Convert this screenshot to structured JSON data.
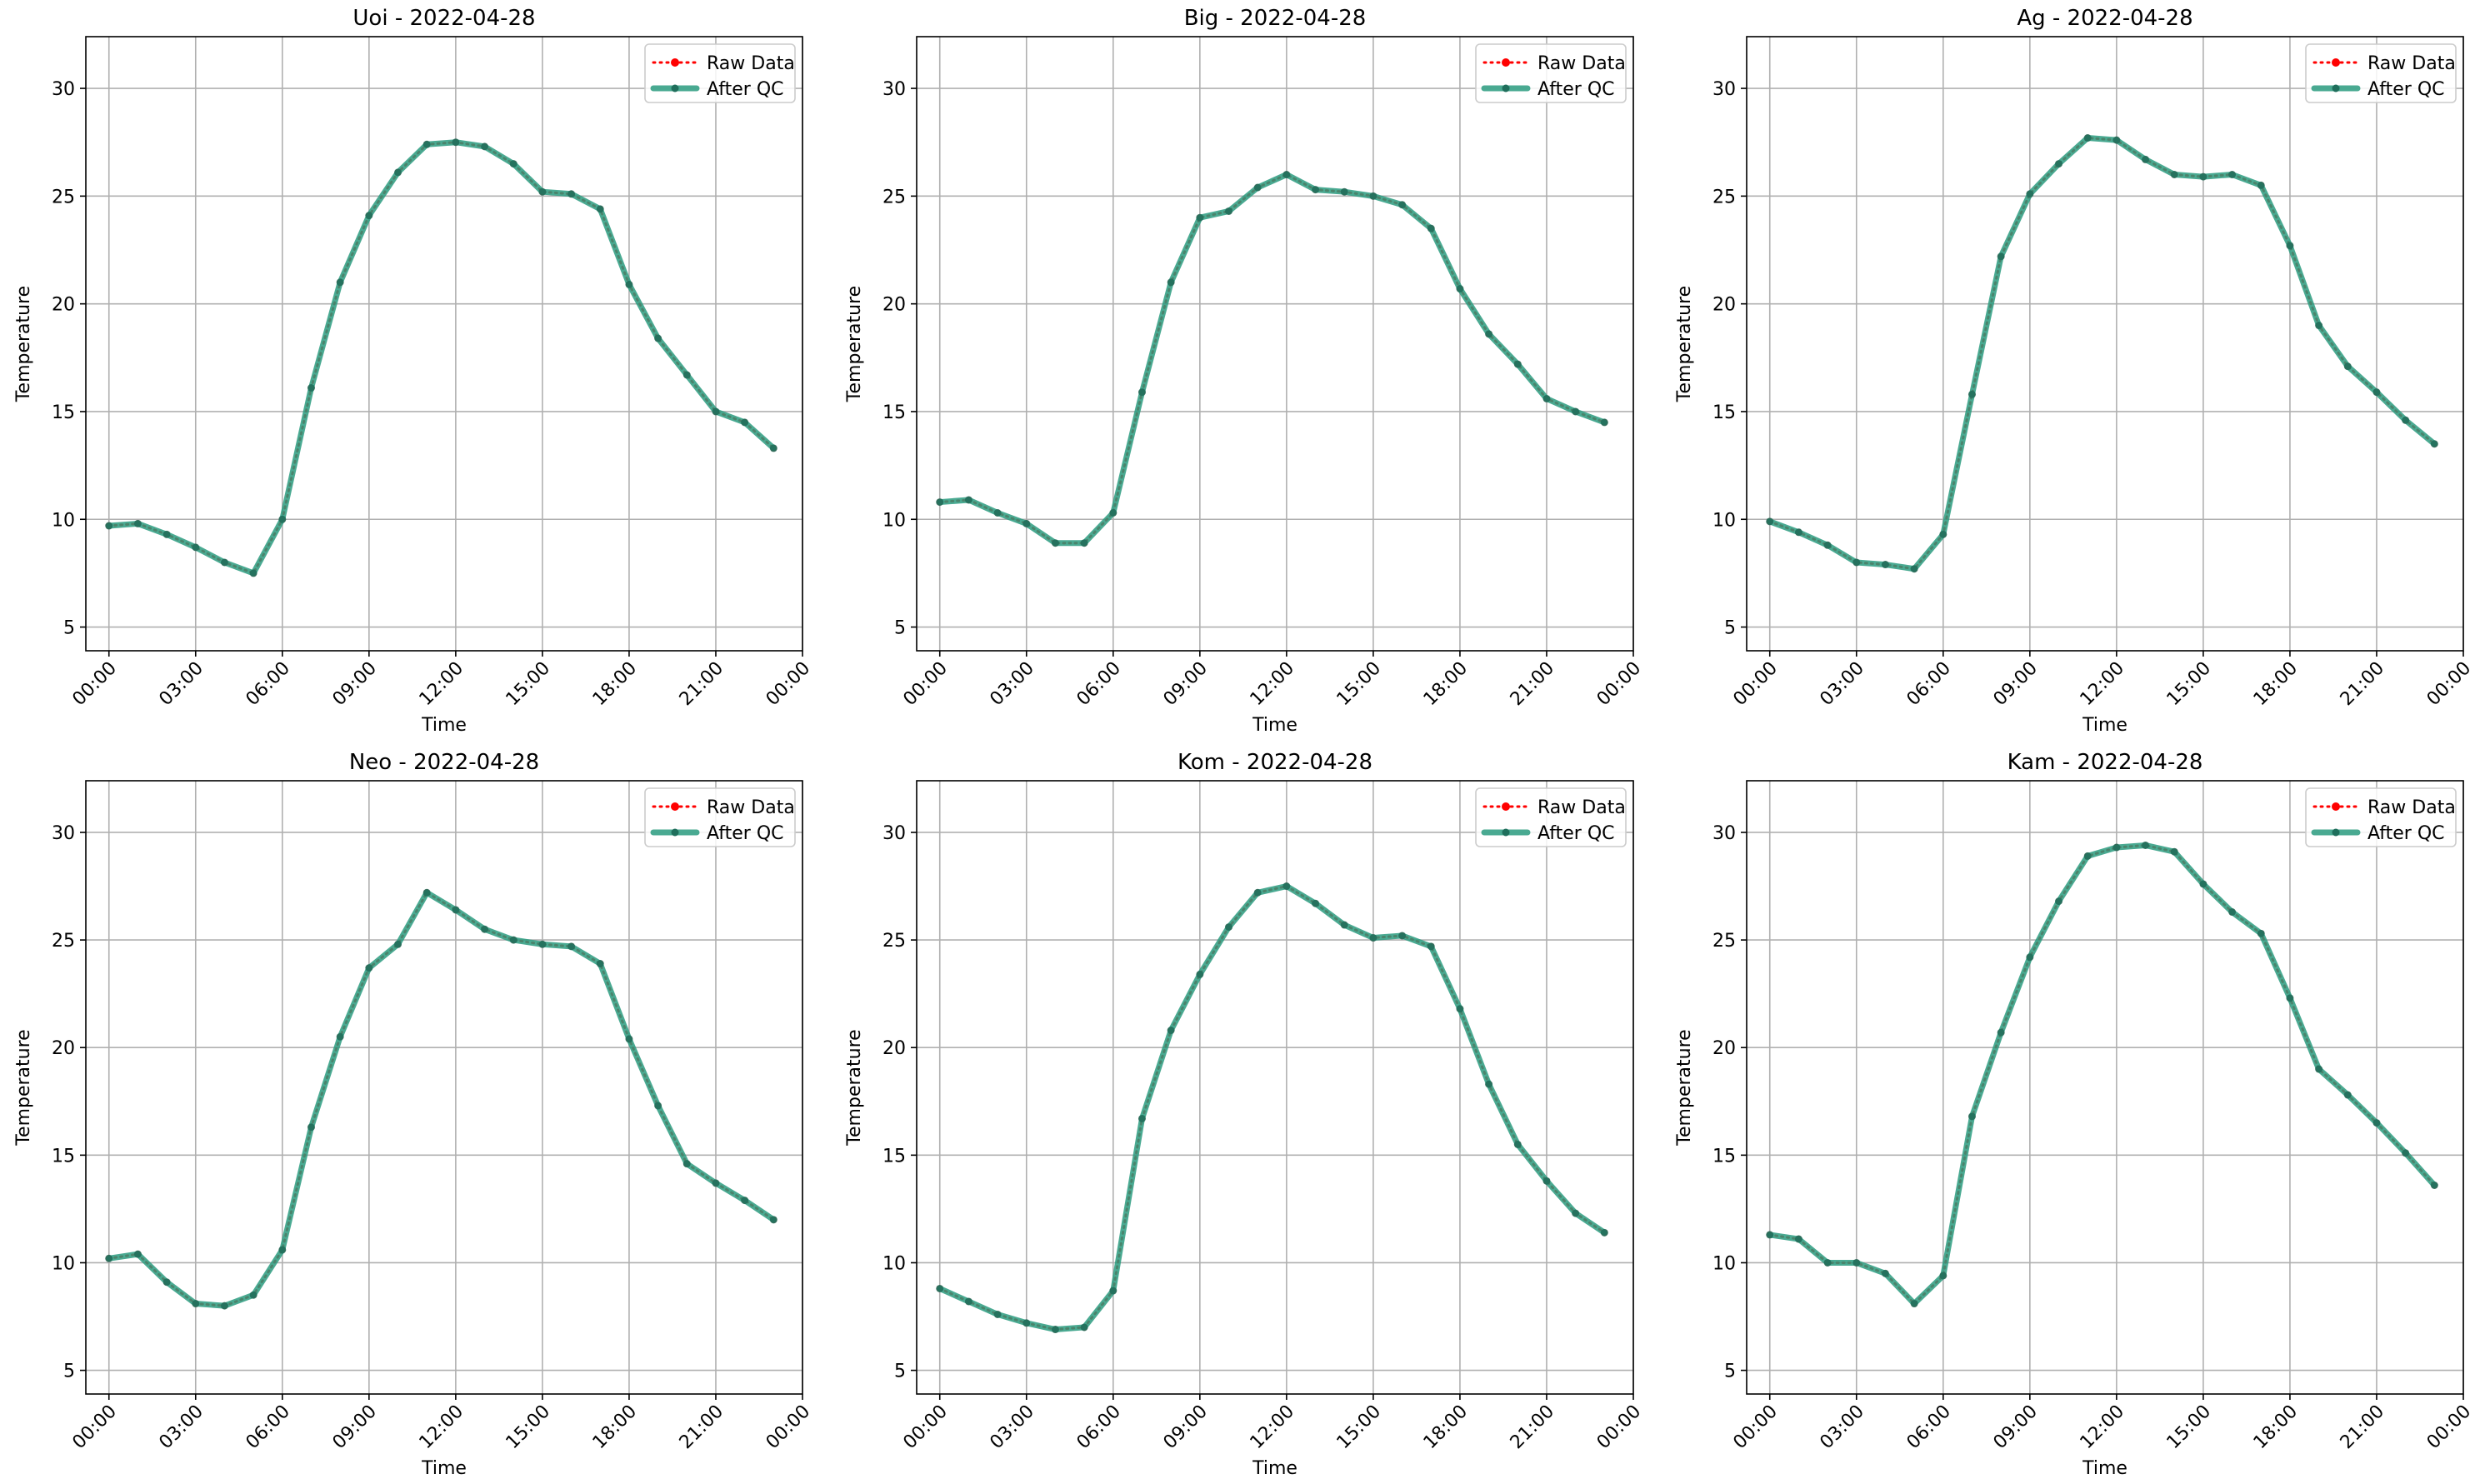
{
  "figure": {
    "legend_position": "upper right",
    "grid": true
  },
  "chart_data": [
    {
      "type": "line",
      "title": "Uoi - 2022-04-28",
      "xlabel": "Time",
      "ylabel": "Temperature",
      "xlim": [
        -0.8,
        24.0
      ],
      "ylim": [
        3.9,
        32.4
      ],
      "x_ticks": [
        0,
        3,
        6,
        9,
        12,
        15,
        18,
        21,
        24
      ],
      "x_tick_labels": [
        "00:00",
        "03:00",
        "06:00",
        "09:00",
        "12:00",
        "15:00",
        "18:00",
        "21:00",
        "00:00"
      ],
      "y_ticks": [
        5,
        10,
        15,
        20,
        25,
        30
      ],
      "y_tick_labels": [
        "5",
        "10",
        "15",
        "20",
        "25",
        "30"
      ],
      "x": [
        0,
        1,
        2,
        3,
        4,
        5,
        6,
        7,
        8,
        9,
        10,
        11,
        12,
        13,
        14,
        15,
        16,
        17,
        18,
        19,
        20,
        21,
        22,
        23
      ],
      "series": [
        {
          "name": "Raw Data",
          "color": "#ff0000",
          "style": "dotted",
          "marker": "circle",
          "values": [
            9.7,
            9.8,
            9.3,
            8.7,
            8.0,
            7.5,
            10.0,
            16.1,
            21.0,
            24.1,
            26.1,
            27.4,
            27.5,
            27.3,
            26.5,
            25.2,
            25.1,
            24.4,
            20.9,
            18.4,
            16.7,
            15.0,
            14.5,
            13.3
          ]
        },
        {
          "name": "After QC",
          "color": "#2a9b7f",
          "style": "solid",
          "marker": "circle",
          "values": [
            9.7,
            9.8,
            9.3,
            8.7,
            8.0,
            7.5,
            10.0,
            16.1,
            21.0,
            24.1,
            26.1,
            27.4,
            27.5,
            27.3,
            26.5,
            25.2,
            25.1,
            24.4,
            20.9,
            18.4,
            16.7,
            15.0,
            14.5,
            13.3
          ]
        }
      ]
    },
    {
      "type": "line",
      "title": "Big - 2022-04-28",
      "xlabel": "Time",
      "ylabel": "Temperature",
      "xlim": [
        -0.8,
        24.0
      ],
      "ylim": [
        3.9,
        32.4
      ],
      "x_ticks": [
        0,
        3,
        6,
        9,
        12,
        15,
        18,
        21,
        24
      ],
      "x_tick_labels": [
        "00:00",
        "03:00",
        "06:00",
        "09:00",
        "12:00",
        "15:00",
        "18:00",
        "21:00",
        "00:00"
      ],
      "y_ticks": [
        5,
        10,
        15,
        20,
        25,
        30
      ],
      "y_tick_labels": [
        "5",
        "10",
        "15",
        "20",
        "25",
        "30"
      ],
      "x": [
        0,
        1,
        2,
        3,
        4,
        5,
        6,
        7,
        8,
        9,
        10,
        11,
        12,
        13,
        14,
        15,
        16,
        17,
        18,
        19,
        20,
        21,
        22,
        23
      ],
      "series": [
        {
          "name": "Raw Data",
          "color": "#ff0000",
          "style": "dotted",
          "marker": "circle",
          "values": [
            10.8,
            10.9,
            10.3,
            9.8,
            8.9,
            8.9,
            10.3,
            15.9,
            21.0,
            24.0,
            24.3,
            25.4,
            26.0,
            25.3,
            25.2,
            25.0,
            24.6,
            23.5,
            20.7,
            18.6,
            17.2,
            15.6,
            15.0,
            14.5
          ]
        },
        {
          "name": "After QC",
          "color": "#2a9b7f",
          "style": "solid",
          "marker": "circle",
          "values": [
            10.8,
            10.9,
            10.3,
            9.8,
            8.9,
            8.9,
            10.3,
            15.9,
            21.0,
            24.0,
            24.3,
            25.4,
            26.0,
            25.3,
            25.2,
            25.0,
            24.6,
            23.5,
            20.7,
            18.6,
            17.2,
            15.6,
            15.0,
            14.5
          ]
        }
      ]
    },
    {
      "type": "line",
      "title": "Ag - 2022-04-28",
      "xlabel": "Time",
      "ylabel": "Temperature",
      "xlim": [
        -0.8,
        24.0
      ],
      "ylim": [
        3.9,
        32.4
      ],
      "x_ticks": [
        0,
        3,
        6,
        9,
        12,
        15,
        18,
        21,
        24
      ],
      "x_tick_labels": [
        "00:00",
        "03:00",
        "06:00",
        "09:00",
        "12:00",
        "15:00",
        "18:00",
        "21:00",
        "00:00"
      ],
      "y_ticks": [
        5,
        10,
        15,
        20,
        25,
        30
      ],
      "y_tick_labels": [
        "5",
        "10",
        "15",
        "20",
        "25",
        "30"
      ],
      "x": [
        0,
        1,
        2,
        3,
        4,
        5,
        6,
        7,
        8,
        9,
        10,
        11,
        12,
        13,
        14,
        15,
        16,
        17,
        18,
        19,
        20,
        21,
        22,
        23
      ],
      "series": [
        {
          "name": "Raw Data",
          "color": "#ff0000",
          "style": "dotted",
          "marker": "circle",
          "values": [
            9.9,
            9.4,
            8.8,
            8.0,
            7.9,
            7.7,
            9.3,
            15.8,
            22.2,
            25.1,
            26.5,
            27.7,
            27.6,
            26.7,
            26.0,
            25.9,
            26.0,
            25.5,
            22.7,
            19.0,
            17.1,
            15.9,
            14.6,
            13.5
          ]
        },
        {
          "name": "After QC",
          "color": "#2a9b7f",
          "style": "solid",
          "marker": "circle",
          "values": [
            9.9,
            9.4,
            8.8,
            8.0,
            7.9,
            7.7,
            9.3,
            15.8,
            22.2,
            25.1,
            26.5,
            27.7,
            27.6,
            26.7,
            26.0,
            25.9,
            26.0,
            25.5,
            22.7,
            19.0,
            17.1,
            15.9,
            14.6,
            13.5
          ]
        }
      ]
    },
    {
      "type": "line",
      "title": "Neo - 2022-04-28",
      "xlabel": "Time",
      "ylabel": "Temperature",
      "xlim": [
        -0.8,
        24.0
      ],
      "ylim": [
        3.9,
        32.4
      ],
      "x_ticks": [
        0,
        3,
        6,
        9,
        12,
        15,
        18,
        21,
        24
      ],
      "x_tick_labels": [
        "00:00",
        "03:00",
        "06:00",
        "09:00",
        "12:00",
        "15:00",
        "18:00",
        "21:00",
        "00:00"
      ],
      "y_ticks": [
        5,
        10,
        15,
        20,
        25,
        30
      ],
      "y_tick_labels": [
        "5",
        "10",
        "15",
        "20",
        "25",
        "30"
      ],
      "x": [
        0,
        1,
        2,
        3,
        4,
        5,
        6,
        7,
        8,
        9,
        10,
        11,
        12,
        13,
        14,
        15,
        16,
        17,
        18,
        19,
        20,
        21,
        22,
        23
      ],
      "series": [
        {
          "name": "Raw Data",
          "color": "#ff0000",
          "style": "dotted",
          "marker": "circle",
          "values": [
            10.2,
            10.4,
            9.1,
            8.1,
            8.0,
            8.5,
            10.6,
            16.3,
            20.5,
            23.7,
            24.8,
            27.2,
            26.4,
            25.5,
            25.0,
            24.8,
            24.7,
            23.9,
            20.4,
            17.3,
            14.6,
            13.7,
            12.9,
            12.0
          ]
        },
        {
          "name": "After QC",
          "color": "#2a9b7f",
          "style": "solid",
          "marker": "circle",
          "values": [
            10.2,
            10.4,
            9.1,
            8.1,
            8.0,
            8.5,
            10.6,
            16.3,
            20.5,
            23.7,
            24.8,
            27.2,
            26.4,
            25.5,
            25.0,
            24.8,
            24.7,
            23.9,
            20.4,
            17.3,
            14.6,
            13.7,
            12.9,
            12.0
          ]
        }
      ]
    },
    {
      "type": "line",
      "title": "Kom - 2022-04-28",
      "xlabel": "Time",
      "ylabel": "Temperature",
      "xlim": [
        -0.8,
        24.0
      ],
      "ylim": [
        3.9,
        32.4
      ],
      "x_ticks": [
        0,
        3,
        6,
        9,
        12,
        15,
        18,
        21,
        24
      ],
      "x_tick_labels": [
        "00:00",
        "03:00",
        "06:00",
        "09:00",
        "12:00",
        "15:00",
        "18:00",
        "21:00",
        "00:00"
      ],
      "y_ticks": [
        5,
        10,
        15,
        20,
        25,
        30
      ],
      "y_tick_labels": [
        "5",
        "10",
        "15",
        "20",
        "25",
        "30"
      ],
      "x": [
        0,
        1,
        2,
        3,
        4,
        5,
        6,
        7,
        8,
        9,
        10,
        11,
        12,
        13,
        14,
        15,
        16,
        17,
        18,
        19,
        20,
        21,
        22,
        23
      ],
      "series": [
        {
          "name": "Raw Data",
          "color": "#ff0000",
          "style": "dotted",
          "marker": "circle",
          "values": [
            8.8,
            8.2,
            7.6,
            7.2,
            6.9,
            7.0,
            8.7,
            16.7,
            20.8,
            23.4,
            25.6,
            27.2,
            27.5,
            26.7,
            25.7,
            25.1,
            25.2,
            24.7,
            21.8,
            18.3,
            15.5,
            13.8,
            12.3,
            11.4
          ]
        },
        {
          "name": "After QC",
          "color": "#2a9b7f",
          "style": "solid",
          "marker": "circle",
          "values": [
            8.8,
            8.2,
            7.6,
            7.2,
            6.9,
            7.0,
            8.7,
            16.7,
            20.8,
            23.4,
            25.6,
            27.2,
            27.5,
            26.7,
            25.7,
            25.1,
            25.2,
            24.7,
            21.8,
            18.3,
            15.5,
            13.8,
            12.3,
            11.4
          ]
        }
      ]
    },
    {
      "type": "line",
      "title": "Kam - 2022-04-28",
      "xlabel": "Time",
      "ylabel": "Temperature",
      "xlim": [
        -0.8,
        24.0
      ],
      "ylim": [
        3.9,
        32.4
      ],
      "x_ticks": [
        0,
        3,
        6,
        9,
        12,
        15,
        18,
        21,
        24
      ],
      "x_tick_labels": [
        "00:00",
        "03:00",
        "06:00",
        "09:00",
        "12:00",
        "15:00",
        "18:00",
        "21:00",
        "00:00"
      ],
      "y_ticks": [
        5,
        10,
        15,
        20,
        25,
        30
      ],
      "y_tick_labels": [
        "5",
        "10",
        "15",
        "20",
        "25",
        "30"
      ],
      "x": [
        0,
        1,
        2,
        3,
        4,
        5,
        6,
        7,
        8,
        9,
        10,
        11,
        12,
        13,
        14,
        15,
        16,
        17,
        18,
        19,
        20,
        21,
        22,
        23
      ],
      "series": [
        {
          "name": "Raw Data",
          "color": "#ff0000",
          "style": "dotted",
          "marker": "circle",
          "values": [
            11.3,
            11.1,
            10.0,
            10.0,
            9.5,
            8.1,
            9.4,
            16.8,
            20.7,
            24.2,
            26.8,
            28.9,
            29.3,
            29.4,
            29.1,
            27.6,
            26.3,
            25.3,
            22.3,
            19.0,
            17.8,
            16.5,
            15.1,
            13.6
          ]
        },
        {
          "name": "After QC",
          "color": "#2a9b7f",
          "style": "solid",
          "marker": "circle",
          "values": [
            11.3,
            11.1,
            10.0,
            10.0,
            9.5,
            8.1,
            9.4,
            16.8,
            20.7,
            24.2,
            26.8,
            28.9,
            29.3,
            29.4,
            29.1,
            27.6,
            26.3,
            25.3,
            22.3,
            19.0,
            17.8,
            16.5,
            15.1,
            13.6
          ]
        }
      ]
    }
  ]
}
